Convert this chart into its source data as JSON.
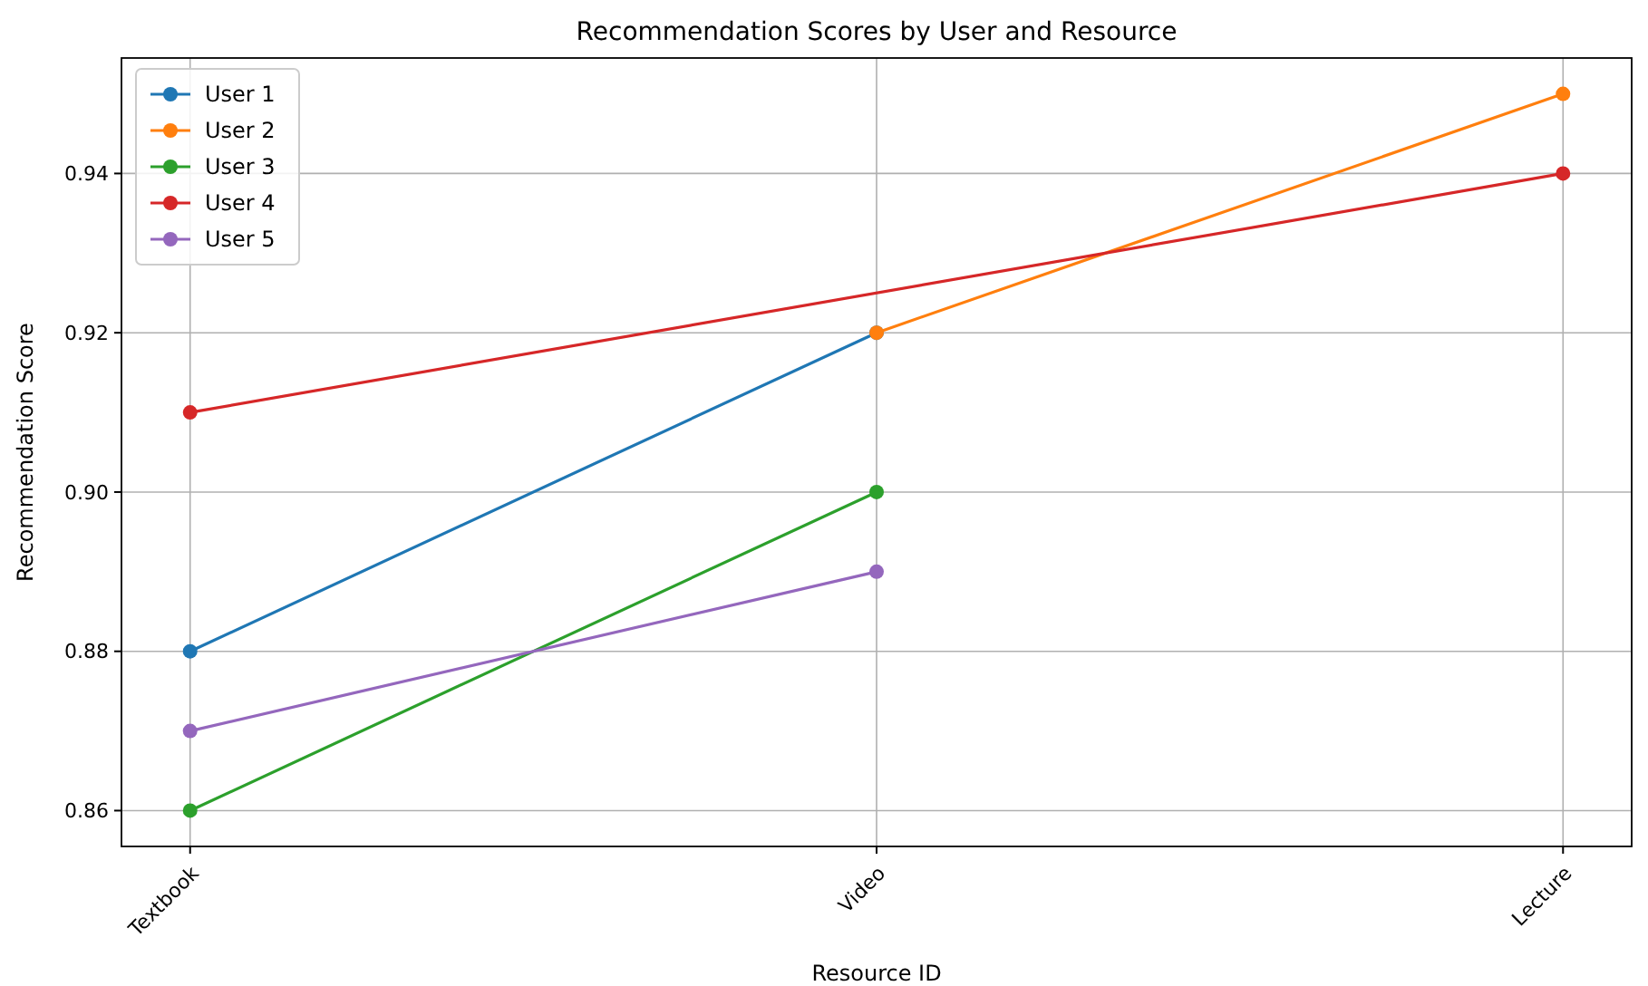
{
  "chart_data": {
    "type": "line",
    "title": "Recommendation Scores by User and Resource",
    "xlabel": "Resource ID",
    "ylabel": "Recommendation Score",
    "categories": [
      "Textbook",
      "Video",
      "Lecture"
    ],
    "series": [
      {
        "name": "User 1",
        "color": "#1f77b4",
        "x": [
          "Textbook",
          "Video"
        ],
        "values": [
          0.88,
          0.92
        ]
      },
      {
        "name": "User 2",
        "color": "#ff7f0e",
        "x": [
          "Video",
          "Lecture"
        ],
        "values": [
          0.92,
          0.95
        ]
      },
      {
        "name": "User 3",
        "color": "#2ca02c",
        "x": [
          "Textbook",
          "Video"
        ],
        "values": [
          0.86,
          0.9
        ]
      },
      {
        "name": "User 4",
        "color": "#d62728",
        "x": [
          "Textbook",
          "Lecture"
        ],
        "values": [
          0.91,
          0.94
        ]
      },
      {
        "name": "User 5",
        "color": "#9467bd",
        "x": [
          "Textbook",
          "Video"
        ],
        "values": [
          0.87,
          0.89
        ]
      }
    ],
    "ylim": [
      0.8555,
      0.9545
    ],
    "yticks": [
      {
        "value": 0.86,
        "label": "0.86"
      },
      {
        "value": 0.88,
        "label": "0.88"
      },
      {
        "value": 0.9,
        "label": "0.90"
      },
      {
        "value": 0.92,
        "label": "0.92"
      },
      {
        "value": 0.94,
        "label": "0.94"
      }
    ],
    "grid": true,
    "legend": "top left",
    "marker": "circle",
    "line_style": "solid"
  }
}
